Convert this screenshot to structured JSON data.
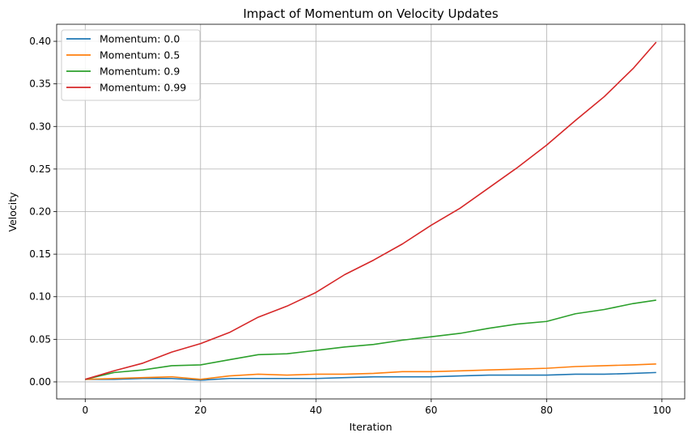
{
  "chart_data": {
    "type": "line",
    "title": "Impact of Momentum on Velocity Updates",
    "xlabel": "Iteration",
    "ylabel": "Velocity",
    "xlim": [
      -4.95,
      103.95
    ],
    "ylim": [
      -0.02,
      0.42
    ],
    "grid": true,
    "legend_position": "top-left",
    "x_ticks": [
      0,
      20,
      40,
      60,
      80,
      100
    ],
    "x_tick_labels": [
      "0",
      "20",
      "40",
      "60",
      "80",
      "100"
    ],
    "y_ticks": [
      0.0,
      0.05,
      0.1,
      0.15,
      0.2,
      0.25,
      0.3,
      0.35,
      0.4
    ],
    "y_tick_labels": [
      "0.00",
      "0.05",
      "0.10",
      "0.15",
      "0.20",
      "0.25",
      "0.30",
      "0.35",
      "0.40"
    ],
    "series": [
      {
        "name": "Momentum: 0.0",
        "color": "#1f77b4",
        "points": [
          [
            0,
            0.003
          ],
          [
            5,
            0.003
          ],
          [
            10,
            0.004
          ],
          [
            15,
            0.004
          ],
          [
            20,
            0.002
          ],
          [
            25,
            0.004
          ],
          [
            30,
            0.004
          ],
          [
            35,
            0.004
          ],
          [
            40,
            0.004
          ],
          [
            45,
            0.005
          ],
          [
            50,
            0.006
          ],
          [
            55,
            0.006
          ],
          [
            60,
            0.006
          ],
          [
            65,
            0.007
          ],
          [
            70,
            0.008
          ],
          [
            75,
            0.008
          ],
          [
            80,
            0.008
          ],
          [
            85,
            0.009
          ],
          [
            90,
            0.009
          ],
          [
            95,
            0.01
          ],
          [
            99,
            0.011
          ]
        ]
      },
      {
        "name": "Momentum: 0.5",
        "color": "#ff7f0e",
        "points": [
          [
            0,
            0.003
          ],
          [
            5,
            0.004
          ],
          [
            10,
            0.005
          ],
          [
            15,
            0.006
          ],
          [
            20,
            0.003
          ],
          [
            25,
            0.007
          ],
          [
            30,
            0.009
          ],
          [
            35,
            0.008
          ],
          [
            40,
            0.009
          ],
          [
            45,
            0.009
          ],
          [
            50,
            0.01
          ],
          [
            55,
            0.012
          ],
          [
            60,
            0.012
          ],
          [
            65,
            0.013
          ],
          [
            70,
            0.014
          ],
          [
            75,
            0.015
          ],
          [
            80,
            0.016
          ],
          [
            85,
            0.018
          ],
          [
            90,
            0.019
          ],
          [
            95,
            0.02
          ],
          [
            99,
            0.021
          ]
        ]
      },
      {
        "name": "Momentum: 0.9",
        "color": "#2ca02c",
        "points": [
          [
            0,
            0.003
          ],
          [
            5,
            0.011
          ],
          [
            10,
            0.014
          ],
          [
            15,
            0.019
          ],
          [
            20,
            0.02
          ],
          [
            25,
            0.026
          ],
          [
            30,
            0.032
          ],
          [
            35,
            0.033
          ],
          [
            40,
            0.037
          ],
          [
            45,
            0.041
          ],
          [
            50,
            0.044
          ],
          [
            55,
            0.049
          ],
          [
            60,
            0.053
          ],
          [
            65,
            0.057
          ],
          [
            70,
            0.063
          ],
          [
            75,
            0.068
          ],
          [
            80,
            0.071
          ],
          [
            85,
            0.08
          ],
          [
            90,
            0.085
          ],
          [
            95,
            0.092
          ],
          [
            99,
            0.096
          ]
        ]
      },
      {
        "name": "Momentum: 0.99",
        "color": "#d62728",
        "points": [
          [
            0,
            0.003
          ],
          [
            5,
            0.013
          ],
          [
            10,
            0.022
          ],
          [
            15,
            0.035
          ],
          [
            20,
            0.045
          ],
          [
            25,
            0.058
          ],
          [
            30,
            0.076
          ],
          [
            35,
            0.089
          ],
          [
            40,
            0.105
          ],
          [
            45,
            0.126
          ],
          [
            50,
            0.143
          ],
          [
            55,
            0.162
          ],
          [
            60,
            0.184
          ],
          [
            65,
            0.204
          ],
          [
            70,
            0.228
          ],
          [
            75,
            0.252
          ],
          [
            80,
            0.278
          ],
          [
            85,
            0.307
          ],
          [
            90,
            0.335
          ],
          [
            95,
            0.368
          ],
          [
            99,
            0.399
          ]
        ]
      }
    ]
  }
}
